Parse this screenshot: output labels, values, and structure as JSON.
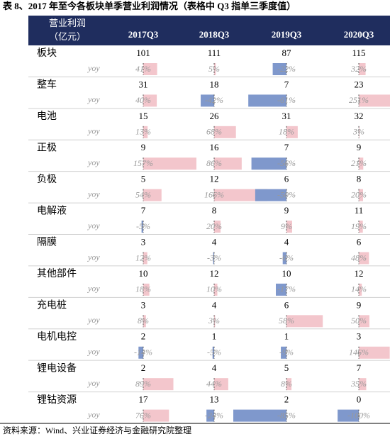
{
  "title": "表 8、2017 年至今各板块单季营业利润情况（表格中 Q3 指单三季度值）",
  "table": {
    "header": {
      "corner": [
        "营业利润",
        "（亿元）"
      ],
      "columns": [
        "2017Q3",
        "2018Q3",
        "2019Q3",
        "2020Q3"
      ]
    },
    "yoy_label": "yoy",
    "rows": [
      {
        "name": "板块",
        "values": [
          101,
          111,
          87,
          115
        ],
        "yoy": [
          41,
          5,
          -22,
          32
        ],
        "yoy_labels": [
          "41%",
          "5%",
          "-22%",
          "32%"
        ]
      },
      {
        "name": "整车",
        "values": [
          31,
          18,
          7,
          23
        ],
        "yoy": [
          40,
          -42,
          -61,
          251
        ],
        "yoy_labels": [
          "40%",
          "-42%",
          "-61%",
          "251%"
        ]
      },
      {
        "name": "电池",
        "values": [
          15,
          26,
          31,
          32
        ],
        "yoy": [
          13,
          68,
          18,
          3
        ],
        "yoy_labels": [
          "13%",
          "68%",
          "18%",
          "3%"
        ]
      },
      {
        "name": "正极",
        "values": [
          9,
          16,
          7,
          9
        ],
        "yoy": [
          157,
          86,
          -56,
          21
        ],
        "yoy_labels": [
          "157%",
          "86%",
          "-56%",
          "21%"
        ]
      },
      {
        "name": "负极",
        "values": [
          5,
          12,
          6,
          8
        ],
        "yoy": [
          54,
          166,
          -50,
          20
        ],
        "yoy_labels": [
          "54%",
          "166%",
          "-50%",
          "20%"
        ]
      },
      {
        "name": "电解液",
        "values": [
          7,
          8,
          9,
          11
        ],
        "yoy": [
          -5,
          20,
          9,
          19
        ],
        "yoy_labels": [
          "-5%",
          "20%",
          "9%",
          "19%"
        ]
      },
      {
        "name": "隔膜",
        "values": [
          3,
          4,
          4,
          6
        ],
        "yoy": [
          12,
          -3,
          -6,
          48
        ],
        "yoy_labels": [
          "12%",
          "-3%",
          "-6%",
          "48%"
        ]
      },
      {
        "name": "其他部件",
        "values": [
          10,
          12,
          10,
          12
        ],
        "yoy": [
          18,
          10,
          -17,
          14
        ],
        "yoy_labels": [
          "18%",
          "10%",
          "-17%",
          "14%"
        ]
      },
      {
        "name": "充电桩",
        "values": [
          3,
          4,
          6,
          9
        ],
        "yoy": [
          8,
          3,
          58,
          50
        ],
        "yoy_labels": [
          "8%",
          "3%",
          "58%",
          "50%"
        ]
      },
      {
        "name": "电机电控",
        "values": [
          2,
          1,
          1,
          3
        ],
        "yoy": [
          -14,
          -5,
          -9,
          146
        ],
        "yoy_labels": [
          "-14%",
          "-5%",
          "-9%",
          "146%"
        ]
      },
      {
        "name": "锂电设备",
        "values": [
          2,
          4,
          5,
          7
        ],
        "yoy": [
          89,
          44,
          8,
          35
        ],
        "yoy_labels": [
          "89%",
          "44%",
          "8%",
          "35%"
        ]
      },
      {
        "name": "锂钴资源",
        "values": [
          17,
          13,
          2,
          0
        ],
        "yoy": [
          76,
          -24,
          -85,
          -100
        ],
        "yoy_labels": [
          "76%",
          "-24%",
          "-85%",
          "-100%"
        ]
      }
    ]
  },
  "source": "资料来源：Wind、兴业证券经济与金融研究院整理"
}
